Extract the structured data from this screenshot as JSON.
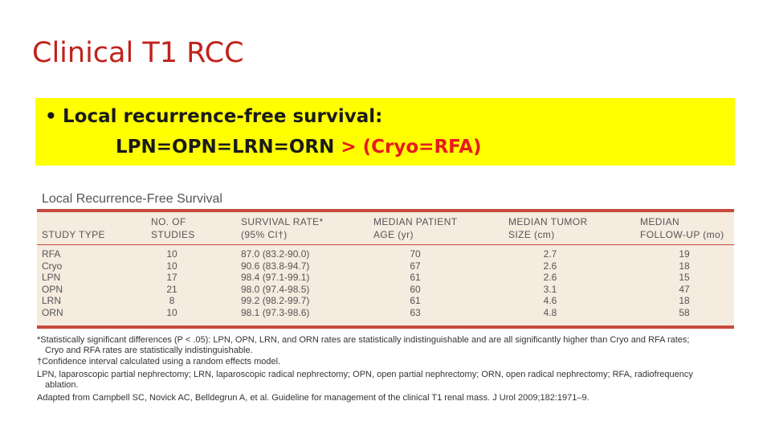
{
  "title": "Clinical T1 RCC",
  "bullet": {
    "marker": "•",
    "line1": "Local recurrence-free survival:",
    "line2_black": "LPN=OPN=LRN=ORN ",
    "line2_red": "> (Cryo=RFA)"
  },
  "table": {
    "title": "Local Recurrence-Free Survival",
    "headers": [
      {
        "line1": "",
        "line2": "STUDY TYPE"
      },
      {
        "line1": "NO. OF",
        "line2": "STUDIES"
      },
      {
        "line1": "SURVIVAL RATE*",
        "line2": "(95% CI†)"
      },
      {
        "line1": "MEDIAN PATIENT",
        "line2": "AGE (yr)"
      },
      {
        "line1": "MEDIAN TUMOR",
        "line2": "SIZE (cm)"
      },
      {
        "line1": "MEDIAN",
        "line2": "FOLLOW-UP (mo)"
      }
    ],
    "rows": [
      [
        "RFA",
        "10",
        "87.0 (83.2-90.0)",
        "70",
        "2.7",
        "19"
      ],
      [
        "Cryo",
        "10",
        "90.6 (83.8-94.7)",
        "67",
        "2.6",
        "18"
      ],
      [
        "LPN",
        "17",
        "98.4 (97.1-99.1)",
        "61",
        "2.6",
        "15"
      ],
      [
        "OPN",
        "21",
        "98.0 (97.4-98.5)",
        "60",
        "3.1",
        "47"
      ],
      [
        "LRN",
        "8",
        "99.2 (98.2-99.7)",
        "61",
        "4.6",
        "18"
      ],
      [
        "ORN",
        "10",
        "98.1 (97.3-98.6)",
        "63",
        "4.8",
        "58"
      ]
    ]
  },
  "footnotes": {
    "f1a": "*Statistically significant differences (P < .05): LPN, OPN, LRN, and ORN rates are statistically indistinguishable and are all significantly higher than Cryo and RFA rates;",
    "f1b": "Cryo and RFA rates are statistically indistinguishable.",
    "f2": "†Confidence interval calculated using a random effects model.",
    "f3a": "LPN, laparoscopic partial nephrectomy; LRN, laparoscopic radical nephrectomy; OPN, open partial nephrectomy; ORN, open radical nephrectomy; RFA, radiofrequency",
    "f3b": "ablation.",
    "f4": "Adapted from Campbell SC, Novick AC, Belldegrun A, et al. Guideline for management of the clinical T1 renal mass. J Urol 2009;182:1971–9."
  },
  "colors": {
    "title": "#c0221c",
    "highlight": "#ffff00",
    "accent_red": "#e8191e",
    "table_rule": "#c8483c",
    "table_bg": "#f5ebdf"
  }
}
